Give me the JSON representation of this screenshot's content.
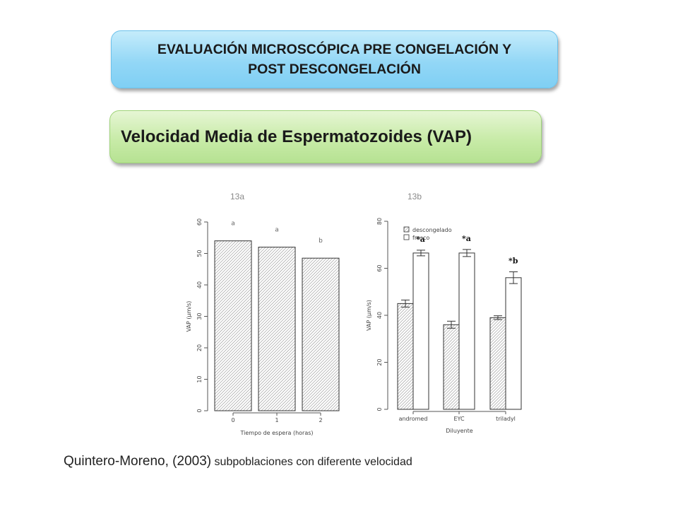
{
  "header": {
    "title_line1": "EVALUACIÓN MICROSCÓPICA PRE CONGELACIÓN Y",
    "title_line2": "POST DESCONGELACIÓN",
    "subtitle": "Velocidad Media de Espermatozoides (VAP)"
  },
  "figure_labels": [
    "13a",
    "13b"
  ],
  "footer": {
    "citation": "Quintero-Moreno, (2003)",
    "note": " subpoblaciones con diferente velocidad"
  },
  "colors": {
    "blue_banner": "#93d7f6",
    "green_banner": "#c8eba8",
    "axis": "#555555"
  },
  "chart_data": [
    {
      "type": "bar",
      "categories": [
        "0",
        "1",
        "2"
      ],
      "values": [
        54,
        52,
        48.5
      ],
      "annotations": [
        "a",
        "a",
        "b"
      ],
      "xlabel": "Tiempo de espera (horas)",
      "ylabel": "VAP (µm/s)",
      "ylim": [
        0,
        60
      ],
      "yticks": [
        0,
        10,
        20,
        30,
        40,
        50,
        60
      ],
      "legend": false
    },
    {
      "type": "bar",
      "categories": [
        "andromed",
        "EYC",
        "triladyl"
      ],
      "series": [
        {
          "name": "descongelado",
          "values": [
            45,
            36,
            39
          ],
          "errors": [
            1.5,
            1.5,
            0.8
          ],
          "style": "hatched"
        },
        {
          "name": "fresco",
          "values": [
            66.5,
            66.5,
            56
          ],
          "errors": [
            1.2,
            1.5,
            2.5
          ],
          "style": "open"
        }
      ],
      "annotations": [
        "*a",
        "*a",
        "*b"
      ],
      "xlabel": "Diluyente",
      "ylabel": "VAP (µm/s)",
      "ylim": [
        0,
        80
      ],
      "yticks": [
        0,
        20,
        40,
        60,
        80
      ],
      "legend": "top-left"
    }
  ]
}
